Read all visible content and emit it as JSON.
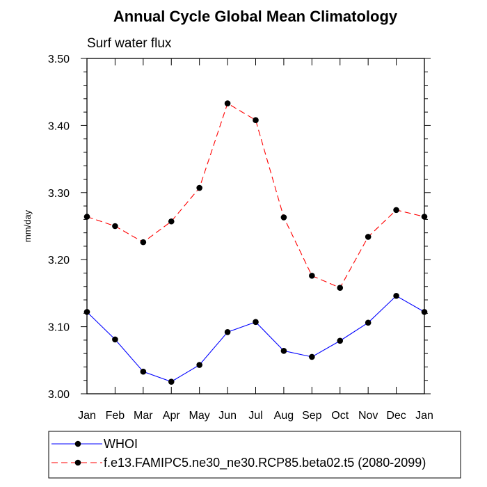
{
  "chart_data": {
    "type": "line",
    "title": "Annual Cycle Global Mean Climatology",
    "subtitle": "Surf water flux",
    "xlabel": "",
    "ylabel": "mm/day",
    "categories": [
      "Jan",
      "Feb",
      "Mar",
      "Apr",
      "May",
      "Jun",
      "Jul",
      "Aug",
      "Sep",
      "Oct",
      "Nov",
      "Dec",
      "Jan"
    ],
    "ylim": [
      3.0,
      3.5
    ],
    "yticks": [
      "3.00",
      "3.10",
      "3.20",
      "3.30",
      "3.40",
      "3.50"
    ],
    "grid": false,
    "legend_position": "bottom",
    "series": [
      {
        "name": "WHOI",
        "color": "#0000ff",
        "dash": "solid",
        "values": [
          3.122,
          3.081,
          3.033,
          3.018,
          3.043,
          3.092,
          3.107,
          3.064,
          3.055,
          3.079,
          3.106,
          3.146,
          3.122
        ]
      },
      {
        "name": "f.e13.FAMIPC5.ne30_ne30.RCP85.beta02.t5 (2080-2099)",
        "color": "#ff0000",
        "dash": "dashed",
        "values": [
          3.264,
          3.25,
          3.226,
          3.257,
          3.307,
          3.433,
          3.408,
          3.263,
          3.176,
          3.158,
          3.234,
          3.274,
          3.264
        ]
      }
    ]
  }
}
